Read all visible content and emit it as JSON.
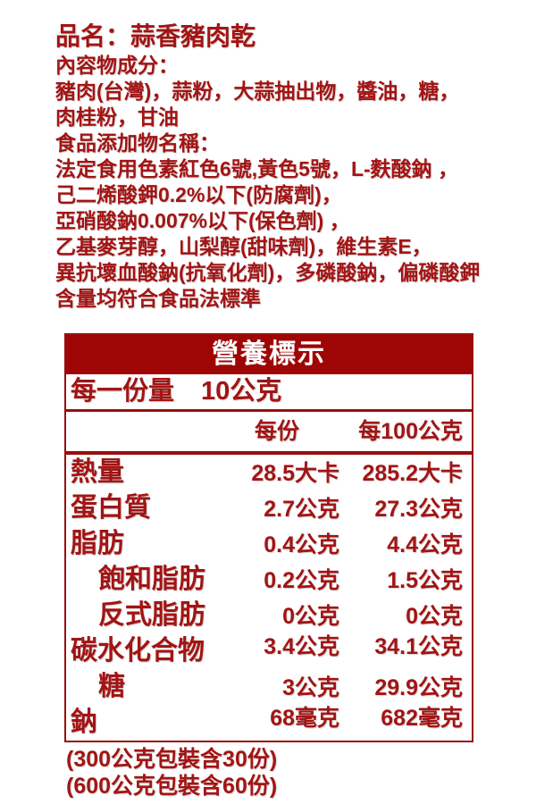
{
  "colors": {
    "text_red": "#A31414",
    "band_background": "#A00505",
    "band_text": "#FFFFFF",
    "border_red": "#9A0E0E",
    "page_background": "#FFFFFF"
  },
  "info": {
    "product_name": "品名：蒜香豬肉乾",
    "lines": [
      "內容物成分：",
      "豬肉(台灣)，蒜粉，大蒜抽出物，醬油，糖，",
      "肉桂粉，甘油",
      "食品添加物名稱：",
      "法定食用色素紅色6號,黃色5號，L-麩酸鈉 ，",
      "己二烯酸鉀0.2%以下(防腐劑)，",
      "亞硝酸鈉0.007%以下(保色劑) ，",
      "乙基麥芽醇，山梨醇(甜味劑)，維生素E，",
      "異抗壞血酸鈉(抗氧化劑)，多磷酸鈉，偏磷酸鉀",
      "含量均符合食品法標準"
    ]
  },
  "nutrition": {
    "title": "營養標示",
    "serving_label": "每一份量",
    "serving_value": "10公克",
    "col_per_serving": "每份",
    "col_per_100g": "每100公克",
    "rows": [
      {
        "label": "熱量",
        "per_serving": "28.5大卡",
        "per_100g": "285.2大卡",
        "indent": false
      },
      {
        "label": "蛋白質",
        "per_serving": "2.7公克",
        "per_100g": "27.3公克",
        "indent": false
      },
      {
        "label": "脂肪",
        "per_serving": "0.4公克",
        "per_100g": "4.4公克",
        "indent": false
      },
      {
        "label": "飽和脂肪",
        "per_serving": "0.2公克",
        "per_100g": "1.5公克",
        "indent": true
      },
      {
        "label": "反式脂肪",
        "per_serving": "0公克",
        "per_100g": "0公克",
        "indent": true
      },
      {
        "label": "碳水化合物",
        "per_serving": "3.4公克",
        "per_100g": "34.1公克",
        "indent": false
      },
      {
        "label": "糖",
        "per_serving": "3公克",
        "per_100g": "29.9公克",
        "indent": true
      },
      {
        "label": "鈉",
        "per_serving": "68毫克",
        "per_100g": "682毫克",
        "indent": false
      }
    ],
    "footnotes": [
      "(300公克包裝含30份)",
      "(600公克包裝含60份)"
    ]
  }
}
